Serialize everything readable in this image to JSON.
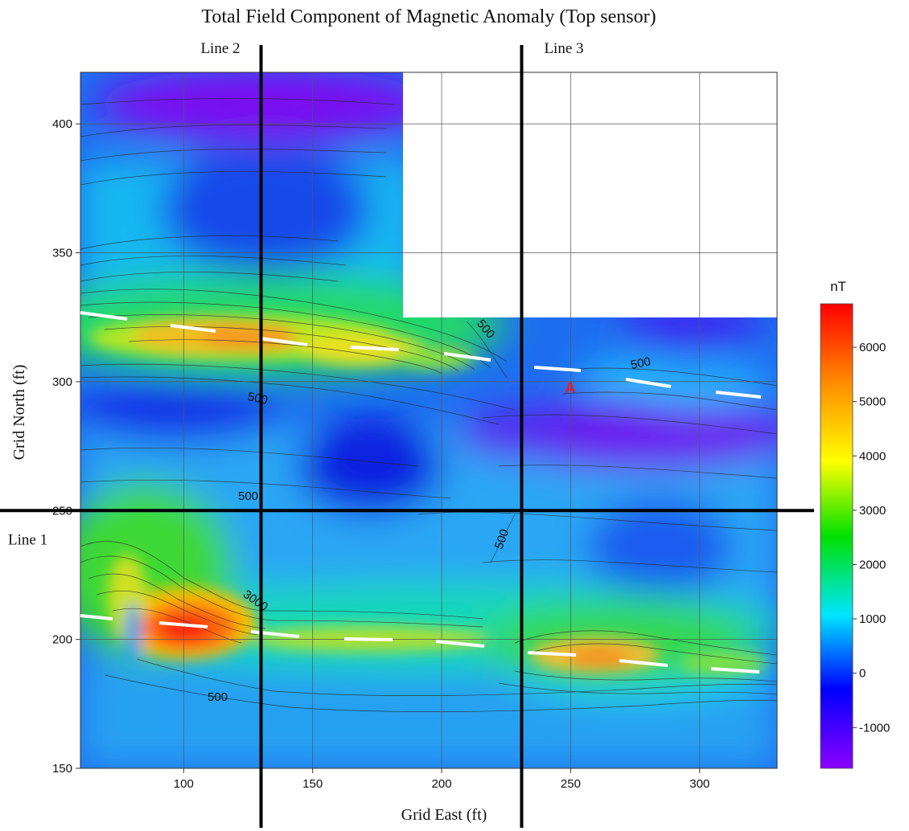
{
  "chart_data": {
    "type": "heatmap",
    "title": "Total Field Component of Magnetic Anomaly (Top sensor)",
    "xlabel": "Grid East (ft)",
    "ylabel": "Grid North (ft)",
    "xlim": [
      60,
      330
    ],
    "ylim": [
      150,
      420
    ],
    "x_ticks": [
      "100",
      "150",
      "200",
      "250",
      "300"
    ],
    "y_ticks": [
      "150",
      "200",
      "250",
      "300",
      "350",
      "400"
    ],
    "grid": true,
    "colorbar": {
      "title": "nT",
      "range": [
        -1750,
        6800
      ],
      "ticks": [
        "-1000",
        "0",
        "1000",
        "2000",
        "3000",
        "4000",
        "5000",
        "6000"
      ],
      "colors": [
        "#8b00ff",
        "#0000ff",
        "#00e5ff",
        "#00e000",
        "#ffff00",
        "#ff8c00",
        "#ff0000"
      ]
    },
    "survey_lines": [
      {
        "label": "Line 1",
        "orientation": "horizontal",
        "north": 250
      },
      {
        "label": "Line 2",
        "orientation": "vertical",
        "east": 130
      },
      {
        "label": "Line 3",
        "orientation": "vertical",
        "east": 231
      }
    ],
    "contour_labels": [
      "500",
      "500",
      "500",
      "500",
      "500",
      "500",
      "3000",
      "500"
    ],
    "marker": {
      "label": "A",
      "east": 250,
      "north": 298
    },
    "anomaly_peaks": [
      {
        "east": 105,
        "north": 205,
        "value": 6200
      },
      {
        "east": 120,
        "north": 318,
        "value": 5000
      },
      {
        "east": 260,
        "north": 194,
        "value": 4800
      },
      {
        "east": 80,
        "north": 225,
        "value": 4000
      }
    ]
  }
}
